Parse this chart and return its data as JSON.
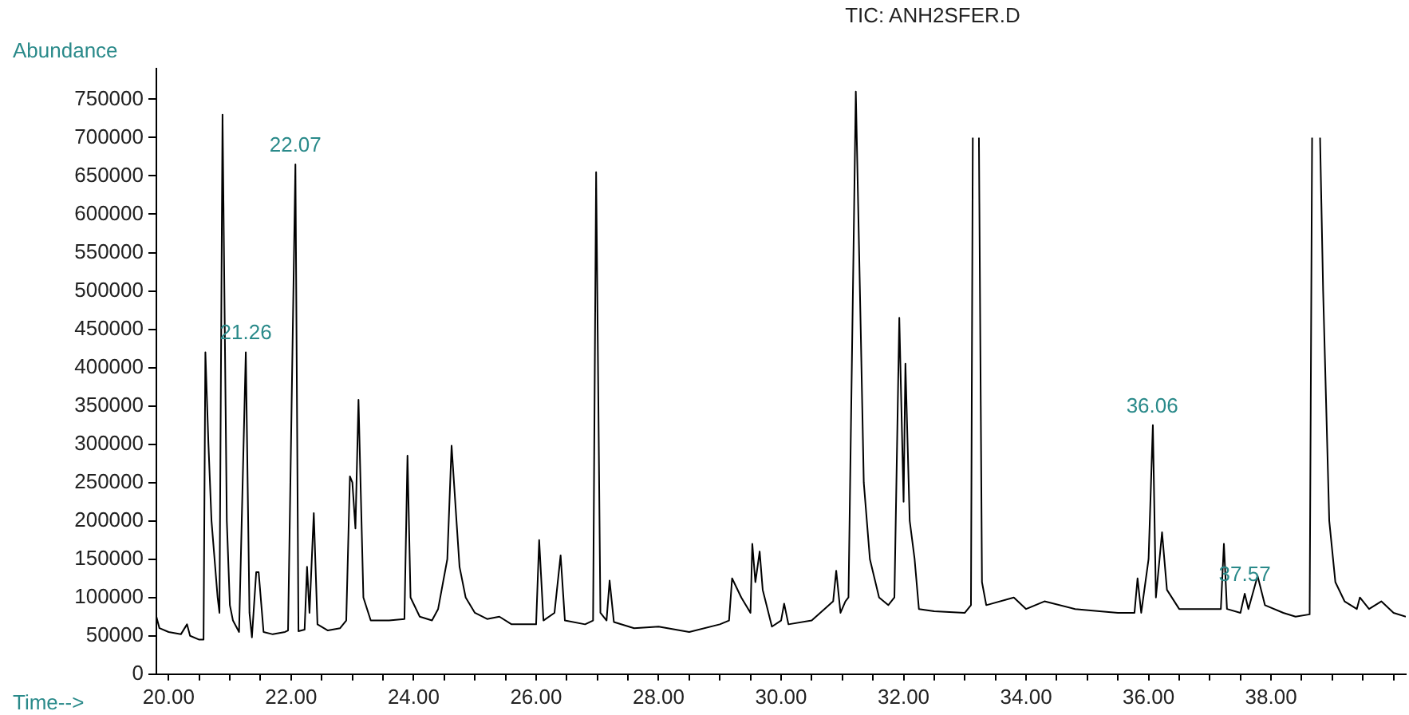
{
  "chart_data": {
    "type": "line",
    "title": "TIC: ANH2SFER.D",
    "xlabel": "Time-->",
    "ylabel": "Abundance",
    "marker": "none",
    "line_style": "solid",
    "xlim": [
      19.8,
      40.2
    ],
    "ylim": [
      0,
      790000
    ],
    "xticks": [
      {
        "value": 20,
        "label": "20.00"
      },
      {
        "value": 20.5,
        "label": null
      },
      {
        "value": 21,
        "label": null
      },
      {
        "value": 21.5,
        "label": null
      },
      {
        "value": 22,
        "label": "22.00"
      },
      {
        "value": 22.5,
        "label": null
      },
      {
        "value": 23,
        "label": null
      },
      {
        "value": 23.5,
        "label": null
      },
      {
        "value": 24,
        "label": "24.00"
      },
      {
        "value": 24.5,
        "label": null
      },
      {
        "value": 25,
        "label": null
      },
      {
        "value": 25.5,
        "label": null
      },
      {
        "value": 26,
        "label": "26.00"
      },
      {
        "value": 26.5,
        "label": null
      },
      {
        "value": 27,
        "label": null
      },
      {
        "value": 27.5,
        "label": null
      },
      {
        "value": 28,
        "label": "28.00"
      },
      {
        "value": 28.5,
        "label": null
      },
      {
        "value": 29,
        "label": null
      },
      {
        "value": 29.5,
        "label": null
      },
      {
        "value": 30,
        "label": "30.00"
      },
      {
        "value": 30.5,
        "label": null
      },
      {
        "value": 31,
        "label": null
      },
      {
        "value": 31.5,
        "label": null
      },
      {
        "value": 32,
        "label": "32.00"
      },
      {
        "value": 32.5,
        "label": null
      },
      {
        "value": 33,
        "label": null
      },
      {
        "value": 33.5,
        "label": null
      },
      {
        "value": 34,
        "label": "34.00"
      },
      {
        "value": 34.5,
        "label": null
      },
      {
        "value": 35,
        "label": null
      },
      {
        "value": 35.5,
        "label": null
      },
      {
        "value": 36,
        "label": "36.00"
      },
      {
        "value": 36.5,
        "label": null
      },
      {
        "value": 37,
        "label": null
      },
      {
        "value": 37.5,
        "label": null
      },
      {
        "value": 38,
        "label": "38.00"
      },
      {
        "value": 38.5,
        "label": null
      },
      {
        "value": 39,
        "label": null
      },
      {
        "value": 39.5,
        "label": null
      },
      {
        "value": 40,
        "label": null
      }
    ],
    "yticks": [
      0,
      50000,
      100000,
      150000,
      200000,
      250000,
      300000,
      350000,
      400000,
      450000,
      500000,
      550000,
      600000,
      650000,
      700000,
      750000
    ],
    "annotations": [
      {
        "text": "21.26",
        "x": 21.26,
        "y": 420000
      },
      {
        "text": "22.07",
        "x": 22.07,
        "y": 665000
      },
      {
        "text": "36.06",
        "x": 36.06,
        "y": 325000
      },
      {
        "text": "37.57",
        "x": 37.57,
        "y": 105000
      }
    ],
    "series": [
      {
        "color": "#000000",
        "x": [
          19.8,
          19.85,
          20.0,
          20.2,
          20.3,
          20.35,
          20.5,
          20.57,
          20.6,
          20.65,
          20.7,
          20.8,
          20.83,
          20.88,
          20.95,
          21.0,
          21.05,
          21.15,
          21.26,
          21.32,
          21.36,
          21.43,
          21.47,
          21.55,
          21.7,
          21.9,
          21.95,
          22.07,
          22.12,
          22.22,
          22.26,
          22.3,
          22.37,
          22.43,
          22.6,
          22.8,
          22.9,
          22.96,
          23.0,
          23.05,
          23.1,
          23.18,
          23.3,
          23.6,
          23.85,
          23.9,
          23.95,
          24.1,
          24.3,
          24.4,
          24.55,
          24.62,
          24.7,
          24.75,
          24.85,
          25.0,
          25.2,
          25.4,
          25.6,
          26.0,
          26.05,
          26.12,
          26.3,
          26.4,
          26.47,
          26.8,
          26.93,
          26.98,
          27.05,
          27.15,
          27.2,
          27.27,
          27.6,
          28.0,
          28.5,
          29.0,
          29.15,
          29.2,
          29.35,
          29.5,
          29.53,
          29.58,
          29.65,
          29.7,
          29.85,
          30.0,
          30.05,
          30.12,
          30.5,
          30.85,
          30.9,
          30.97,
          31.05,
          31.1,
          31.22,
          31.3,
          31.35,
          31.45,
          31.6,
          31.75,
          31.85,
          31.93,
          32.0,
          32.03,
          32.1,
          32.18,
          32.25,
          32.5,
          33.0,
          33.1,
          33.13,
          33.18,
          33.23,
          33.28,
          33.35,
          33.8,
          34.0,
          34.3,
          34.8,
          35.2,
          35.5,
          35.77,
          35.82,
          35.88,
          36.0,
          36.07,
          36.12,
          36.22,
          36.3,
          36.5,
          37.0,
          37.18,
          37.23,
          37.28,
          37.5,
          37.57,
          37.63,
          37.78,
          37.9,
          38.2,
          38.4,
          38.63,
          38.67,
          38.73,
          38.8,
          38.85,
          38.95,
          39.05,
          39.2,
          39.4,
          39.45,
          39.6,
          39.8,
          40.0,
          40.2
        ],
        "values": [
          75000,
          60000,
          55000,
          52000,
          65000,
          50000,
          45000,
          45000,
          420000,
          300000,
          200000,
          100000,
          80000,
          730000,
          200000,
          90000,
          70000,
          55000,
          420000,
          80000,
          48000,
          133000,
          133000,
          55000,
          52000,
          55000,
          57000,
          665000,
          56000,
          58000,
          140000,
          80000,
          210000,
          65000,
          57000,
          60000,
          70000,
          258000,
          250000,
          190000,
          358000,
          100000,
          70000,
          70000,
          72000,
          285000,
          100000,
          75000,
          70000,
          85000,
          150000,
          298000,
          200000,
          140000,
          100000,
          80000,
          72000,
          75000,
          65000,
          65000,
          175000,
          70000,
          80000,
          155000,
          70000,
          65000,
          70000,
          655000,
          80000,
          70000,
          122000,
          68000,
          60000,
          62000,
          55000,
          65000,
          70000,
          125000,
          100000,
          80000,
          170000,
          120000,
          160000,
          110000,
          62000,
          70000,
          92000,
          65000,
          70000,
          95000,
          135000,
          80000,
          95000,
          100000,
          760000,
          450000,
          250000,
          150000,
          100000,
          90000,
          100000,
          465000,
          225000,
          405000,
          200000,
          150000,
          85000,
          82000,
          80000,
          90000,
          700000,
          null,
          700000,
          120000,
          90000,
          100000,
          85000,
          95000,
          85000,
          82000,
          80000,
          80000,
          125000,
          80000,
          150000,
          325000,
          100000,
          185000,
          110000,
          85000,
          85000,
          85000,
          170000,
          85000,
          80000,
          105000,
          85000,
          128000,
          90000,
          80000,
          75000,
          78000,
          700000,
          null,
          700000,
          500000,
          200000,
          120000,
          95000,
          85000,
          100000,
          85000,
          95000,
          80000,
          75000
        ]
      }
    ]
  }
}
